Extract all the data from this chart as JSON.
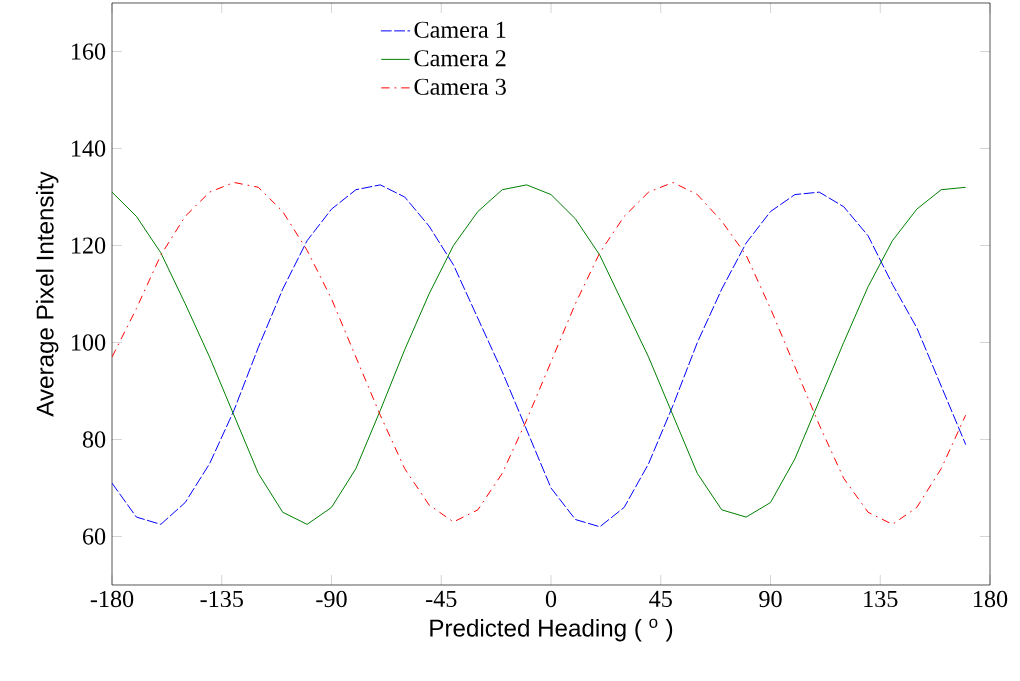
{
  "chart_data": {
    "type": "line",
    "xlabel": "Predicted Heading ( $^{o}$ )",
    "ylabel": "Average Pixel Intensity",
    "x": [
      -180,
      -170,
      -160,
      -150,
      -140,
      -130,
      -120,
      -110,
      -100,
      -90,
      -80,
      -70,
      -60,
      -50,
      -40,
      -30,
      -20,
      -10,
      0,
      10,
      20,
      30,
      40,
      50,
      60,
      70,
      80,
      90,
      100,
      110,
      120,
      130,
      140,
      150,
      160,
      170
    ],
    "series": [
      {
        "name": "Camera 1",
        "color": "#0000ff",
        "line_style": "dashed",
        "values": [
          71,
          64,
          62.5,
          67,
          75,
          86,
          99,
          111,
          121,
          127.5,
          131.5,
          132.5,
          130,
          124,
          116,
          105,
          94,
          82,
          70,
          63.5,
          62,
          66,
          75,
          87,
          100,
          111,
          120.5,
          127,
          130.5,
          131,
          128,
          122,
          112,
          103,
          91,
          79
        ]
      },
      {
        "name": "Camera 2",
        "color": "#008000",
        "line_style": "solid",
        "values": [
          131,
          126,
          118.5,
          108,
          97,
          85,
          73,
          65,
          62.5,
          66,
          74,
          86,
          98.5,
          110,
          120,
          127,
          131.5,
          132.5,
          130.5,
          125.5,
          118,
          107.5,
          97,
          85,
          73,
          65.5,
          64,
          67,
          76,
          88,
          100,
          111.5,
          121,
          127.5,
          131.5,
          132
        ]
      },
      {
        "name": "Camera 3",
        "color": "#ff0000",
        "line_style": "dashdot",
        "values": [
          97,
          107,
          118,
          126,
          131,
          133,
          132,
          127,
          119,
          109,
          97,
          85,
          74,
          66.5,
          63,
          65.5,
          73,
          84,
          96,
          108,
          118.5,
          126,
          131,
          133,
          130.5,
          125,
          118,
          107,
          95,
          83,
          72,
          65,
          62.5,
          66,
          74,
          85
        ]
      }
    ],
    "xlim": [
      -180,
      180
    ],
    "ylim": [
      50,
      170
    ],
    "xticks": [
      -180,
      -135,
      -90,
      -45,
      0,
      45,
      90,
      135,
      180
    ],
    "yticks": [
      60,
      80,
      100,
      120,
      140,
      160
    ],
    "grid": false,
    "legend": "top",
    "marker": "none"
  }
}
